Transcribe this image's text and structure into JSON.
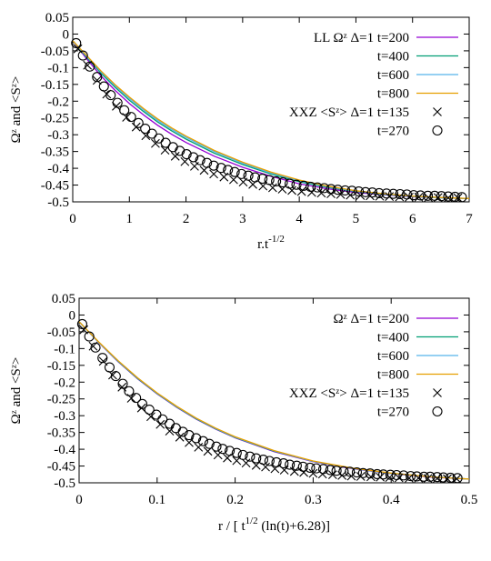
{
  "chart_data": [
    {
      "type": "line",
      "xlabel": "r.t",
      "xlabel_sup": "-1/2",
      "ylabel": "Ωᶻ and <Sᶻ>",
      "xlim": [
        0,
        7
      ],
      "ylim": [
        -0.5,
        0.05
      ],
      "xticks": [
        "0",
        "1",
        "2",
        "3",
        "4",
        "5",
        "6",
        "7"
      ],
      "yticks": [
        "0.05",
        "0",
        "-0.05",
        "-0.1",
        "-0.15",
        "-0.2",
        "-0.25",
        "-0.3",
        "-0.35",
        "-0.4",
        "-0.45",
        "-0.5"
      ],
      "legend": {
        "placement": "top-right",
        "entries": [
          {
            "label": "LL Ωᶻ Δ=1 t=200",
            "kind": "line",
            "color": "#9400d3"
          },
          {
            "label": "t=400",
            "kind": "line",
            "color": "#009e73"
          },
          {
            "label": "t=600",
            "kind": "line",
            "color": "#56b4e9"
          },
          {
            "label": "t=800",
            "kind": "line",
            "color": "#e69f00"
          },
          {
            "label": "XXZ <Sᶻ>  Δ=1 t=135",
            "kind": "cross",
            "color": "#000000"
          },
          {
            "label": "t=270",
            "kind": "circle",
            "color": "#000000"
          }
        ]
      },
      "series": [
        {
          "name": "LL Ωᶻ Δ=1 t=200",
          "style": "line",
          "color": "#9400d3",
          "x": [
            0,
            0.25,
            0.5,
            0.75,
            1,
            1.25,
            1.5,
            1.75,
            2,
            2.5,
            3,
            3.5,
            4,
            4.5,
            5,
            5.5,
            6,
            6.5,
            7
          ],
          "y": [
            -0.02,
            -0.075,
            -0.125,
            -0.168,
            -0.207,
            -0.241,
            -0.272,
            -0.299,
            -0.323,
            -0.364,
            -0.397,
            -0.424,
            -0.446,
            -0.461,
            -0.472,
            -0.479,
            -0.485,
            -0.488,
            -0.49
          ]
        },
        {
          "name": "t=400",
          "style": "line",
          "color": "#009e73",
          "x": [
            0,
            0.25,
            0.5,
            0.75,
            1,
            1.25,
            1.5,
            1.75,
            2,
            2.5,
            3,
            3.5,
            4,
            4.5,
            5,
            5.5,
            6,
            6.5,
            7
          ],
          "y": [
            -0.02,
            -0.07,
            -0.117,
            -0.159,
            -0.197,
            -0.231,
            -0.262,
            -0.289,
            -0.313,
            -0.355,
            -0.389,
            -0.417,
            -0.44,
            -0.457,
            -0.469,
            -0.478,
            -0.484,
            -0.488,
            -0.49
          ]
        },
        {
          "name": "t=600",
          "style": "line",
          "color": "#56b4e9",
          "x": [
            0,
            0.25,
            0.5,
            0.75,
            1,
            1.25,
            1.5,
            1.75,
            2,
            2.5,
            3,
            3.5,
            4,
            4.5,
            5,
            5.5,
            6,
            6.5,
            7
          ],
          "y": [
            -0.02,
            -0.067,
            -0.113,
            -0.154,
            -0.192,
            -0.226,
            -0.257,
            -0.284,
            -0.308,
            -0.35,
            -0.385,
            -0.414,
            -0.437,
            -0.455,
            -0.468,
            -0.477,
            -0.484,
            -0.488,
            -0.49
          ]
        },
        {
          "name": "t=800",
          "style": "line",
          "color": "#e69f00",
          "x": [
            0,
            0.25,
            0.5,
            0.75,
            1,
            1.25,
            1.5,
            1.75,
            2,
            2.5,
            3,
            3.5,
            4,
            4.5,
            5,
            5.5,
            6,
            6.5,
            7
          ],
          "y": [
            -0.02,
            -0.065,
            -0.11,
            -0.151,
            -0.188,
            -0.222,
            -0.253,
            -0.28,
            -0.304,
            -0.347,
            -0.382,
            -0.411,
            -0.435,
            -0.453,
            -0.467,
            -0.476,
            -0.483,
            -0.487,
            -0.49
          ]
        },
        {
          "name": "XXZ <Sᶻ>  Δ=1 t=135",
          "style": "cross",
          "color": "#000000",
          "x": [
            0.09,
            0.26,
            0.43,
            0.6,
            0.77,
            0.95,
            1.12,
            1.29,
            1.46,
            1.63,
            1.81,
            1.98,
            2.15,
            2.32,
            2.49,
            2.67,
            2.84,
            3.01,
            3.18,
            3.36,
            3.53,
            3.7,
            3.87,
            4.04,
            4.22,
            4.39,
            4.56,
            4.73,
            4.9,
            5.08,
            5.25,
            5.42,
            5.59,
            5.77,
            5.94,
            6.11,
            6.28,
            6.45,
            6.63,
            6.8
          ],
          "y": [
            -0.044,
            -0.093,
            -0.138,
            -0.179,
            -0.215,
            -0.248,
            -0.277,
            -0.303,
            -0.326,
            -0.346,
            -0.364,
            -0.38,
            -0.394,
            -0.406,
            -0.417,
            -0.426,
            -0.434,
            -0.441,
            -0.448,
            -0.453,
            -0.458,
            -0.462,
            -0.466,
            -0.469,
            -0.472,
            -0.474,
            -0.476,
            -0.478,
            -0.48,
            -0.481,
            -0.482,
            -0.483,
            -0.484,
            -0.485,
            -0.486,
            -0.486,
            -0.487,
            -0.487,
            -0.488,
            -0.488
          ]
        },
        {
          "name": "t=270",
          "style": "circle",
          "color": "#000000",
          "x": [
            0.06,
            0.18,
            0.3,
            0.43,
            0.55,
            0.67,
            0.79,
            0.91,
            1.03,
            1.16,
            1.28,
            1.4,
            1.52,
            1.64,
            1.77,
            1.89,
            2.01,
            2.13,
            2.25,
            2.37,
            2.49,
            2.62,
            2.74,
            2.86,
            2.98,
            3.1,
            3.22,
            3.35,
            3.47,
            3.59,
            3.71,
            3.83,
            3.95,
            4.08,
            4.2,
            4.32,
            4.44,
            4.56,
            4.68,
            4.81,
            4.93,
            5.05,
            5.17,
            5.29,
            5.41,
            5.54,
            5.66,
            5.78,
            5.9,
            6.02,
            6.14,
            6.27,
            6.39,
            6.51,
            6.63,
            6.75,
            6.87
          ],
          "y": [
            -0.027,
            -0.064,
            -0.097,
            -0.128,
            -0.156,
            -0.182,
            -0.205,
            -0.227,
            -0.247,
            -0.265,
            -0.282,
            -0.297,
            -0.311,
            -0.324,
            -0.337,
            -0.348,
            -0.358,
            -0.367,
            -0.376,
            -0.384,
            -0.392,
            -0.399,
            -0.405,
            -0.411,
            -0.417,
            -0.422,
            -0.427,
            -0.431,
            -0.435,
            -0.439,
            -0.442,
            -0.446,
            -0.449,
            -0.452,
            -0.455,
            -0.457,
            -0.459,
            -0.462,
            -0.464,
            -0.466,
            -0.467,
            -0.469,
            -0.471,
            -0.472,
            -0.474,
            -0.475,
            -0.476,
            -0.477,
            -0.478,
            -0.48,
            -0.481,
            -0.482,
            -0.482,
            -0.483,
            -0.484,
            -0.485,
            -0.486
          ]
        }
      ]
    },
    {
      "type": "line",
      "xlabel": "r / [ t",
      "xlabel_sup": "1/2",
      "xlabel_rest": " (ln(t)+6.28)]",
      "ylabel": "Ωᶻ and <Sᶻ>",
      "xlim": [
        0,
        0.5
      ],
      "ylim": [
        -0.5,
        0.05
      ],
      "xticks": [
        "0",
        "0.1",
        "0.2",
        "0.3",
        "0.4",
        "0.5"
      ],
      "yticks": [
        "0.05",
        "0",
        "-0.05",
        "-0.1",
        "-0.15",
        "-0.2",
        "-0.25",
        "-0.3",
        "-0.35",
        "-0.4",
        "-0.45",
        "-0.5"
      ],
      "legend": {
        "placement": "top-right",
        "entries": [
          {
            "label": "Ωᶻ Δ=1 t=200",
            "kind": "line",
            "color": "#9400d3"
          },
          {
            "label": "t=400",
            "kind": "line",
            "color": "#009e73"
          },
          {
            "label": "t=600",
            "kind": "line",
            "color": "#56b4e9"
          },
          {
            "label": "t=800",
            "kind": "line",
            "color": "#e69f00"
          },
          {
            "label": "XXZ <Sᶻ>  Δ=1 t=135",
            "kind": "cross",
            "color": "#000000"
          },
          {
            "label": "t=270",
            "kind": "circle",
            "color": "#000000"
          }
        ]
      },
      "series": [
        {
          "name": "Ωᶻ Δ=1 t=200",
          "style": "line",
          "color": "#9400d3",
          "x": [
            0,
            0.025,
            0.05,
            0.075,
            0.1,
            0.125,
            0.15,
            0.175,
            0.2,
            0.25,
            0.3,
            0.35,
            0.4,
            0.45,
            0.5
          ],
          "y": [
            -0.02,
            -0.082,
            -0.139,
            -0.19,
            -0.235,
            -0.275,
            -0.31,
            -0.34,
            -0.366,
            -0.407,
            -0.437,
            -0.458,
            -0.473,
            -0.483,
            -0.489
          ]
        },
        {
          "name": "t=400",
          "style": "line",
          "color": "#009e73",
          "x": [
            0,
            0.025,
            0.05,
            0.075,
            0.1,
            0.125,
            0.15,
            0.175,
            0.2,
            0.25,
            0.3,
            0.35,
            0.4,
            0.45,
            0.5
          ],
          "y": [
            -0.02,
            -0.081,
            -0.138,
            -0.189,
            -0.234,
            -0.274,
            -0.309,
            -0.339,
            -0.365,
            -0.406,
            -0.436,
            -0.457,
            -0.472,
            -0.482,
            -0.489
          ]
        },
        {
          "name": "t=600",
          "style": "line",
          "color": "#56b4e9",
          "x": [
            0,
            0.025,
            0.05,
            0.075,
            0.1,
            0.125,
            0.15,
            0.175,
            0.2,
            0.25,
            0.3,
            0.35,
            0.4,
            0.45,
            0.5
          ],
          "y": [
            -0.02,
            -0.081,
            -0.137,
            -0.188,
            -0.233,
            -0.273,
            -0.308,
            -0.338,
            -0.364,
            -0.405,
            -0.436,
            -0.457,
            -0.472,
            -0.482,
            -0.489
          ]
        },
        {
          "name": "t=800",
          "style": "line",
          "color": "#e69f00",
          "x": [
            0,
            0.025,
            0.05,
            0.075,
            0.1,
            0.125,
            0.15,
            0.175,
            0.2,
            0.25,
            0.3,
            0.35,
            0.4,
            0.45,
            0.5
          ],
          "y": [
            -0.02,
            -0.08,
            -0.136,
            -0.187,
            -0.232,
            -0.272,
            -0.307,
            -0.337,
            -0.363,
            -0.404,
            -0.435,
            -0.456,
            -0.471,
            -0.482,
            -0.489
          ]
        },
        {
          "name": "XXZ <Sᶻ>  Δ=1 t=135",
          "style": "cross",
          "color": "#000000",
          "x": [
            0.006,
            0.018,
            0.031,
            0.043,
            0.055,
            0.067,
            0.08,
            0.092,
            0.104,
            0.116,
            0.129,
            0.141,
            0.153,
            0.165,
            0.178,
            0.19,
            0.202,
            0.214,
            0.227,
            0.239,
            0.251,
            0.263,
            0.276,
            0.288,
            0.3,
            0.312,
            0.325,
            0.337,
            0.349,
            0.361,
            0.374,
            0.386,
            0.398,
            0.41,
            0.423,
            0.435,
            0.447,
            0.459,
            0.472,
            0.484
          ],
          "y": [
            -0.044,
            -0.093,
            -0.138,
            -0.179,
            -0.215,
            -0.248,
            -0.277,
            -0.303,
            -0.326,
            -0.346,
            -0.364,
            -0.38,
            -0.394,
            -0.406,
            -0.417,
            -0.426,
            -0.434,
            -0.441,
            -0.448,
            -0.453,
            -0.458,
            -0.462,
            -0.466,
            -0.469,
            -0.472,
            -0.474,
            -0.476,
            -0.478,
            -0.48,
            -0.481,
            -0.482,
            -0.483,
            -0.484,
            -0.485,
            -0.486,
            -0.486,
            -0.487,
            -0.487,
            -0.488,
            -0.488
          ]
        },
        {
          "name": "t=270",
          "style": "circle",
          "color": "#000000",
          "x": [
            0.004,
            0.013,
            0.021,
            0.03,
            0.039,
            0.047,
            0.056,
            0.064,
            0.073,
            0.081,
            0.09,
            0.099,
            0.107,
            0.116,
            0.124,
            0.133,
            0.141,
            0.15,
            0.159,
            0.167,
            0.176,
            0.184,
            0.193,
            0.202,
            0.21,
            0.219,
            0.227,
            0.236,
            0.244,
            0.253,
            0.262,
            0.27,
            0.279,
            0.287,
            0.296,
            0.304,
            0.313,
            0.322,
            0.33,
            0.339,
            0.347,
            0.356,
            0.364,
            0.373,
            0.382,
            0.39,
            0.399,
            0.407,
            0.416,
            0.425,
            0.433,
            0.442,
            0.45,
            0.459,
            0.467,
            0.476,
            0.485
          ],
          "y": [
            -0.027,
            -0.064,
            -0.097,
            -0.128,
            -0.156,
            -0.182,
            -0.205,
            -0.227,
            -0.247,
            -0.265,
            -0.282,
            -0.297,
            -0.311,
            -0.324,
            -0.337,
            -0.348,
            -0.358,
            -0.367,
            -0.376,
            -0.384,
            -0.392,
            -0.399,
            -0.405,
            -0.411,
            -0.417,
            -0.422,
            -0.427,
            -0.431,
            -0.435,
            -0.439,
            -0.442,
            -0.446,
            -0.449,
            -0.452,
            -0.455,
            -0.457,
            -0.459,
            -0.462,
            -0.464,
            -0.466,
            -0.467,
            -0.469,
            -0.471,
            -0.472,
            -0.474,
            -0.475,
            -0.476,
            -0.477,
            -0.478,
            -0.48,
            -0.481,
            -0.482,
            -0.482,
            -0.483,
            -0.484,
            -0.485,
            -0.486
          ]
        }
      ]
    }
  ]
}
